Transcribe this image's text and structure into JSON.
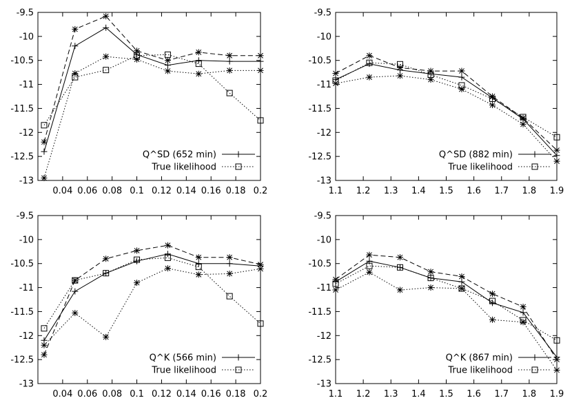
{
  "chart_data": [
    {
      "type": "line",
      "title": "",
      "xlabel": "",
      "ylabel": "",
      "xlim": [
        0.02,
        0.2
      ],
      "ylim": [
        -13,
        -9.5
      ],
      "x_ticks": [
        0.04,
        0.06,
        0.08,
        0.1,
        0.12,
        0.14,
        0.16,
        0.18,
        0.2
      ],
      "x_tick_labels": [
        "0.04",
        "0.06",
        "0.08",
        "0.1",
        "0.12",
        "0.14",
        "0.16",
        "0.18",
        "0.2"
      ],
      "y_ticks": [
        -9.5,
        -10,
        -10.5,
        -11,
        -11.5,
        -12,
        -12.5,
        -13
      ],
      "y_tick_labels": [
        "-9.5",
        "-10",
        "-10.5",
        "-11",
        "-11.5",
        "-12",
        "-12.5",
        "-13"
      ],
      "x": [
        0.025,
        0.05,
        0.075,
        0.1,
        0.125,
        0.15,
        0.175,
        0.2
      ],
      "legend_position": "bottom-right",
      "series": [
        {
          "name": "Q^SD (652 min)",
          "style": "solid",
          "marker": "plus",
          "values": [
            -12.4,
            -10.2,
            -9.82,
            -10.38,
            -10.6,
            -10.5,
            -10.52,
            -10.52
          ]
        },
        {
          "name": "True likelihood",
          "style": "dotted",
          "marker": "square",
          "values": [
            -11.85,
            -10.85,
            -10.7,
            -10.4,
            -10.38,
            -10.57,
            -11.18,
            -11.75
          ]
        },
        {
          "name": "",
          "style": "dashed",
          "marker": "star",
          "values": [
            -12.2,
            -9.85,
            -9.58,
            -10.3,
            -10.5,
            -10.33,
            -10.4,
            -10.4
          ]
        },
        {
          "name": "",
          "style": "dotted",
          "marker": "star",
          "values": [
            -12.95,
            -10.77,
            -10.42,
            -10.48,
            -10.72,
            -10.78,
            -10.71,
            -10.71
          ]
        }
      ]
    },
    {
      "type": "line",
      "title": "",
      "xlabel": "",
      "ylabel": "",
      "xlim": [
        1.1,
        1.9
      ],
      "ylim": [
        -13,
        -9.5
      ],
      "x_ticks": [
        1.1,
        1.2,
        1.3,
        1.4,
        1.5,
        1.6,
        1.7,
        1.8,
        1.9
      ],
      "x_tick_labels": [
        "1.1",
        "1.2",
        "1.3",
        "1.4",
        "1.5",
        "1.6",
        "1.7",
        "1.8",
        "1.9"
      ],
      "y_ticks": [
        -9.5,
        -10,
        -10.5,
        -11,
        -11.5,
        -12,
        -12.5,
        -13
      ],
      "y_tick_labels": [
        "-9.5",
        "-10",
        "-10.5",
        "-11",
        "-11.5",
        "-12",
        "-12.5",
        "-13"
      ],
      "x": [
        1.1,
        1.222,
        1.333,
        1.444,
        1.556,
        1.667,
        1.778,
        1.9
      ],
      "legend_position": "bottom-right",
      "series": [
        {
          "name": "Q^SD (882 min)",
          "style": "solid",
          "marker": "plus",
          "values": [
            -10.9,
            -10.57,
            -10.7,
            -10.78,
            -10.85,
            -11.28,
            -11.72,
            -12.48
          ]
        },
        {
          "name": "True likelihood",
          "style": "dotted",
          "marker": "square",
          "values": [
            -10.92,
            -10.55,
            -10.58,
            -10.8,
            -11.02,
            -11.3,
            -11.68,
            -12.1
          ]
        },
        {
          "name": "",
          "style": "dashed",
          "marker": "star",
          "values": [
            -10.77,
            -10.4,
            -10.65,
            -10.72,
            -10.72,
            -11.25,
            -11.7,
            -12.37
          ]
        },
        {
          "name": "",
          "style": "dotted",
          "marker": "star",
          "values": [
            -10.98,
            -10.85,
            -10.82,
            -10.9,
            -11.1,
            -11.43,
            -11.83,
            -12.6
          ]
        }
      ]
    },
    {
      "type": "line",
      "title": "",
      "xlabel": "",
      "ylabel": "",
      "xlim": [
        0.02,
        0.2
      ],
      "ylim": [
        -13,
        -9.5
      ],
      "x_ticks": [
        0.04,
        0.06,
        0.08,
        0.1,
        0.12,
        0.14,
        0.16,
        0.18,
        0.2
      ],
      "x_tick_labels": [
        "0.04",
        "0.06",
        "0.08",
        "0.1",
        "0.12",
        "0.14",
        "0.16",
        "0.18",
        "0.2"
      ],
      "y_ticks": [
        -9.5,
        -10,
        -10.5,
        -11,
        -11.5,
        -12,
        -12.5,
        -13
      ],
      "y_tick_labels": [
        "-9.5",
        "-10",
        "-10.5",
        "-11",
        "-11.5",
        "-12",
        "-12.5",
        "-13"
      ],
      "x": [
        0.025,
        0.05,
        0.075,
        0.1,
        0.125,
        0.15,
        0.175,
        0.2
      ],
      "legend_position": "bottom-right",
      "series": [
        {
          "name": "Q^K (566 min)",
          "style": "solid",
          "marker": "plus",
          "values": [
            -12.1,
            -11.08,
            -10.7,
            -10.45,
            -10.3,
            -10.5,
            -10.5,
            -10.55
          ]
        },
        {
          "name": "True likelihood",
          "style": "dotted",
          "marker": "square",
          "values": [
            -11.85,
            -10.85,
            -10.7,
            -10.42,
            -10.38,
            -10.57,
            -11.18,
            -11.75
          ]
        },
        {
          "name": "",
          "style": "dashed",
          "marker": "star",
          "values": [
            -12.4,
            -10.85,
            -10.4,
            -10.23,
            -10.12,
            -10.37,
            -10.37,
            -10.52
          ]
        },
        {
          "name": "",
          "style": "dotted",
          "marker": "star",
          "values": [
            -12.2,
            -11.53,
            -12.03,
            -10.9,
            -10.6,
            -10.73,
            -10.71,
            -10.61
          ]
        }
      ]
    },
    {
      "type": "line",
      "title": "",
      "xlabel": "",
      "ylabel": "",
      "xlim": [
        1.1,
        1.9
      ],
      "ylim": [
        -13,
        -9.5
      ],
      "x_ticks": [
        1.1,
        1.2,
        1.3,
        1.4,
        1.5,
        1.6,
        1.7,
        1.8,
        1.9
      ],
      "x_tick_labels": [
        "1.1",
        "1.2",
        "1.3",
        "1.4",
        "1.5",
        "1.6",
        "1.7",
        "1.8",
        "1.9"
      ],
      "y_ticks": [
        -9.5,
        -10,
        -10.5,
        -11,
        -11.5,
        -12,
        -12.5,
        -13
      ],
      "y_tick_labels": [
        "-9.5",
        "-10",
        "-10.5",
        "-11",
        "-11.5",
        "-12",
        "-12.5",
        "-13"
      ],
      "x": [
        1.1,
        1.222,
        1.333,
        1.444,
        1.556,
        1.667,
        1.778,
        1.9
      ],
      "legend_position": "bottom-right",
      "series": [
        {
          "name": "Q^K (867 min)",
          "style": "solid",
          "marker": "plus",
          "values": [
            -10.88,
            -10.45,
            -10.58,
            -10.8,
            -10.88,
            -11.32,
            -11.52,
            -12.45
          ]
        },
        {
          "name": "True likelihood",
          "style": "dotted",
          "marker": "square",
          "values": [
            -10.92,
            -10.55,
            -10.58,
            -10.8,
            -11.02,
            -11.28,
            -11.68,
            -12.1
          ]
        },
        {
          "name": "",
          "style": "dashed",
          "marker": "star",
          "values": [
            -10.83,
            -10.32,
            -10.37,
            -10.67,
            -10.77,
            -11.13,
            -11.4,
            -12.5
          ]
        },
        {
          "name": "",
          "style": "dotted",
          "marker": "star",
          "values": [
            -11.05,
            -10.68,
            -11.05,
            -11.0,
            -11.02,
            -11.67,
            -11.72,
            -12.72
          ]
        }
      ]
    }
  ]
}
